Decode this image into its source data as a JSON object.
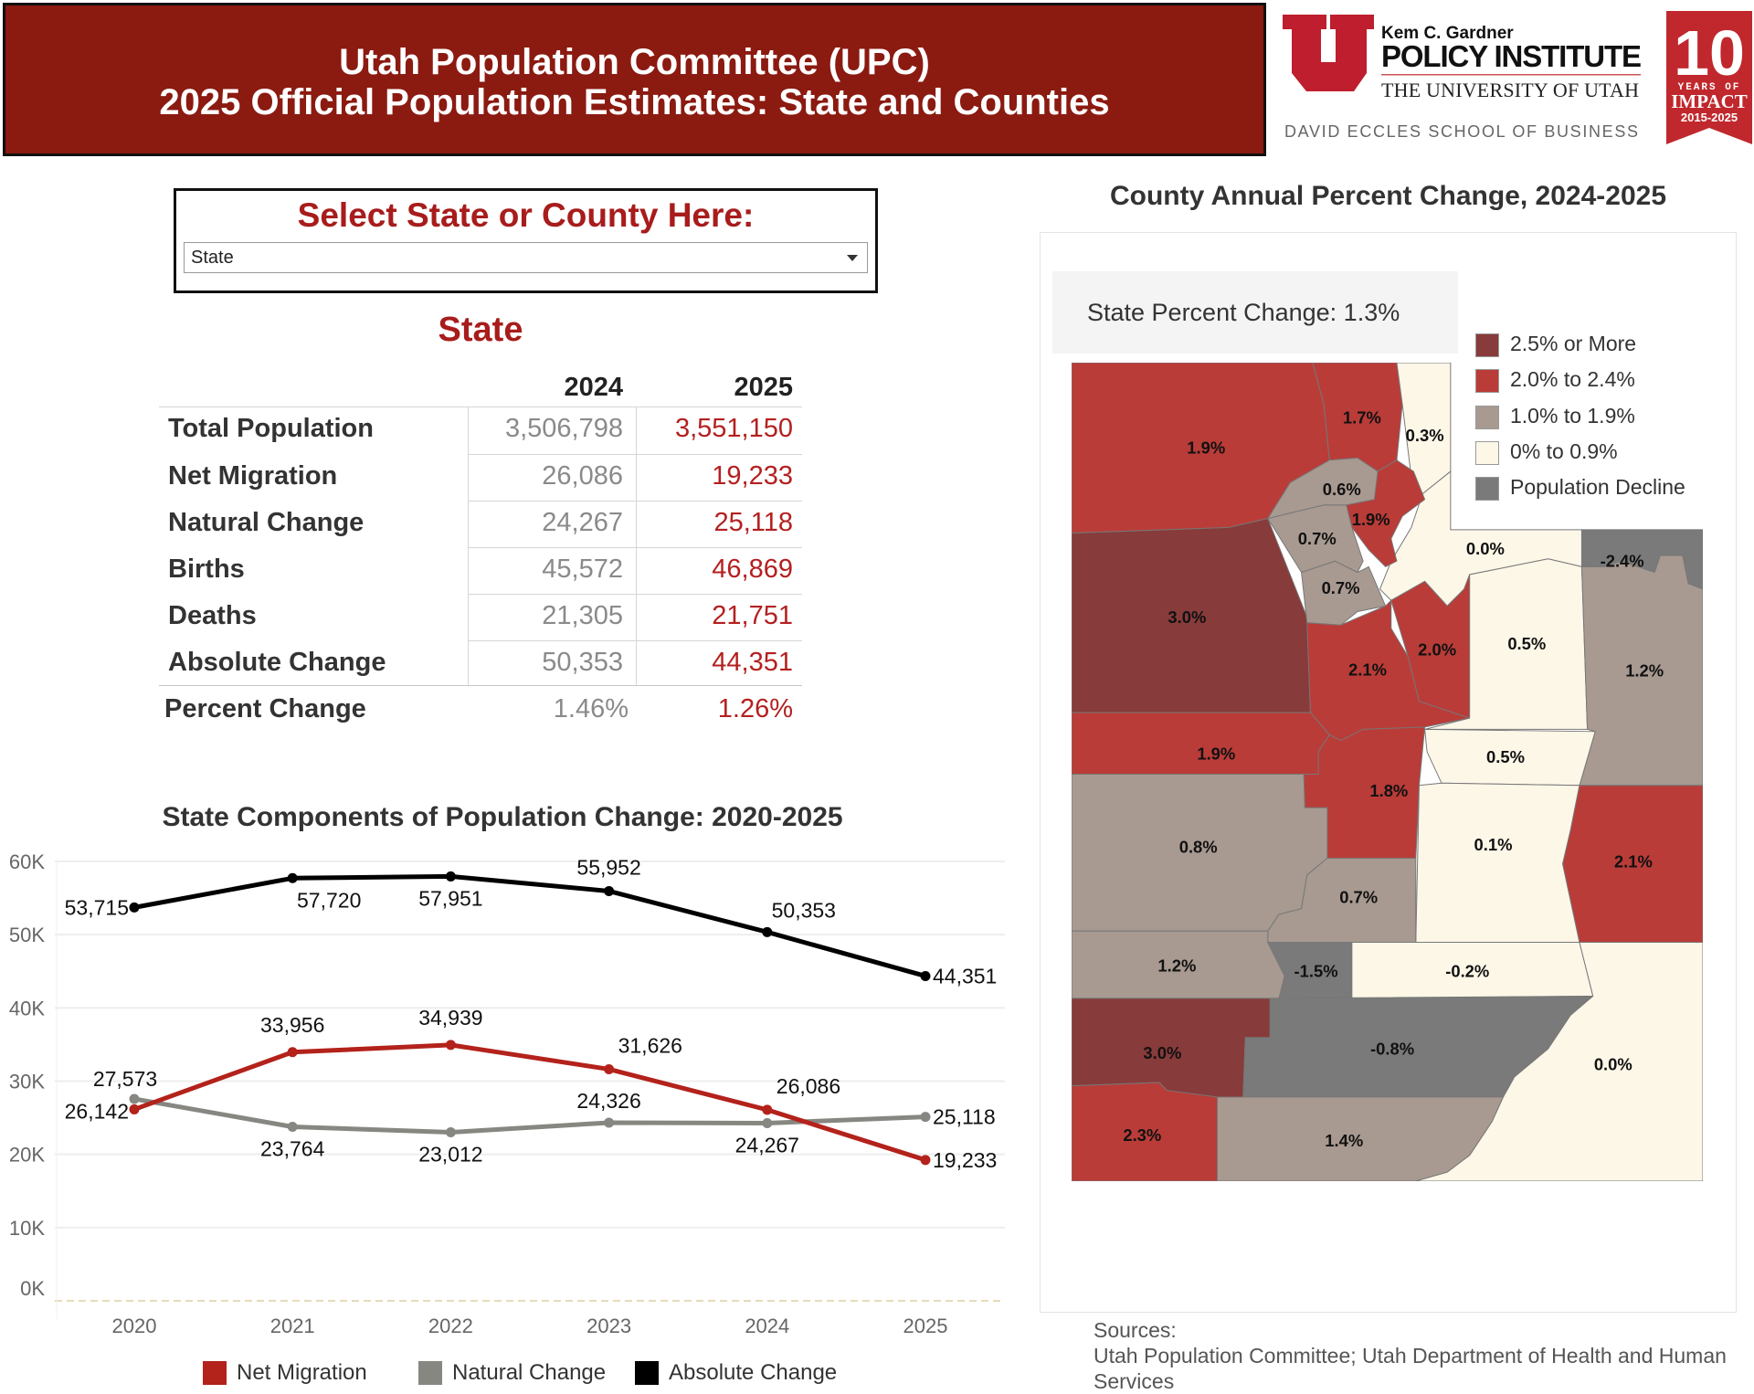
{
  "header": {
    "title_line1": "Utah Population Committee (UPC)",
    "title_line2": "2025 Official Population Estimates: State and Counties"
  },
  "logo": {
    "line1": "Kem C. Gardner",
    "line2": "POLICY INSTITUTE",
    "line3": "THE UNIVERSITY OF UTAH",
    "line4": "DAVID ECCLES SCHOOL OF BUSINESS",
    "banner_number": "10",
    "banner_line1": "YEARS OF",
    "banner_line2": "IMPACT",
    "banner_line3": "2015-2025"
  },
  "selector": {
    "title": "Select State or County Here:",
    "value": "State"
  },
  "summary": {
    "title": "State",
    "columns": [
      "2024",
      "2025"
    ],
    "rows": [
      {
        "label": "Total Population",
        "v2024": "3,506,798",
        "v2025": "3,551,150"
      },
      {
        "label": "Net Migration",
        "v2024": "26,086",
        "v2025": "19,233"
      },
      {
        "label": "Natural Change",
        "v2024": "24,267",
        "v2025": "25,118"
      },
      {
        "label": "Births",
        "v2024": "45,572",
        "v2025": "46,869"
      },
      {
        "label": "Deaths",
        "v2024": "21,305",
        "v2025": "21,751"
      },
      {
        "label": "Absolute Change",
        "v2024": "50,353",
        "v2025": "44,351"
      },
      {
        "label": "Percent Change",
        "v2024": "1.46%",
        "v2025": "1.26%"
      }
    ]
  },
  "chart_data": {
    "type": "line",
    "title": "State Components of Population Change: 2020-2025",
    "x": [
      "2020",
      "2021",
      "2022",
      "2023",
      "2024",
      "2025"
    ],
    "ylim": [
      0,
      60000
    ],
    "yticks": [
      "0K",
      "10K",
      "20K",
      "30K",
      "40K",
      "50K",
      "60K"
    ],
    "grid": true,
    "legend": "bottom",
    "series": [
      {
        "name": "Net Migration",
        "color": "#b3221b",
        "values": [
          26142,
          33956,
          34939,
          31626,
          26086,
          19233
        ],
        "labels": [
          "26,142",
          "33,956",
          "34,939",
          "31,626",
          "26,086",
          "19,233"
        ]
      },
      {
        "name": "Natural Change",
        "color": "#878782",
        "values": [
          27573,
          23764,
          23012,
          24326,
          24267,
          25118
        ],
        "labels": [
          "27,573",
          "23,764",
          "23,012",
          "24,326",
          "24,267",
          "25,118"
        ]
      },
      {
        "name": "Absolute Change",
        "color": "#000000",
        "values": [
          53715,
          57720,
          57951,
          55952,
          50353,
          44351
        ],
        "labels": [
          "53,715",
          "57,720",
          "57,951",
          "55,952",
          "50,353",
          "44,351"
        ]
      }
    ]
  },
  "map": {
    "title": "County Annual Percent Change, 2024-2025",
    "state_change": "State Percent Change: 1.3%",
    "legend": [
      {
        "label": "2.5% or More",
        "color": "#873b3a"
      },
      {
        "label": "2.0% to 2.4%",
        "color": "#b93c38"
      },
      {
        "label": "1.0% to 1.9%",
        "color": "#a89a91"
      },
      {
        "label": "0% to 0.9%",
        "color": "#fdf7e8"
      },
      {
        "label": "Population Decline",
        "color": "#7a7a7a"
      }
    ],
    "counties": [
      "1.9%",
      "1.7%",
      "0.3%",
      "0.0%",
      "0.6%",
      "1.9%",
      "3.0%",
      "0.7%",
      "0.7%",
      "2.1%",
      "2.0%",
      "0.5%",
      "-2.4%",
      "1.2%",
      "1.9%",
      "1.8%",
      "0.5%",
      "0.1%",
      "2.1%",
      "0.8%",
      "0.7%",
      "1.2%",
      "-1.5%",
      "-0.2%",
      "3.0%",
      "-0.8%",
      "2.3%",
      "1.4%",
      "0.0%"
    ]
  },
  "sources": {
    "label": "Sources:",
    "text": "Utah Population Committee; Utah Department of Health and Human Services"
  }
}
